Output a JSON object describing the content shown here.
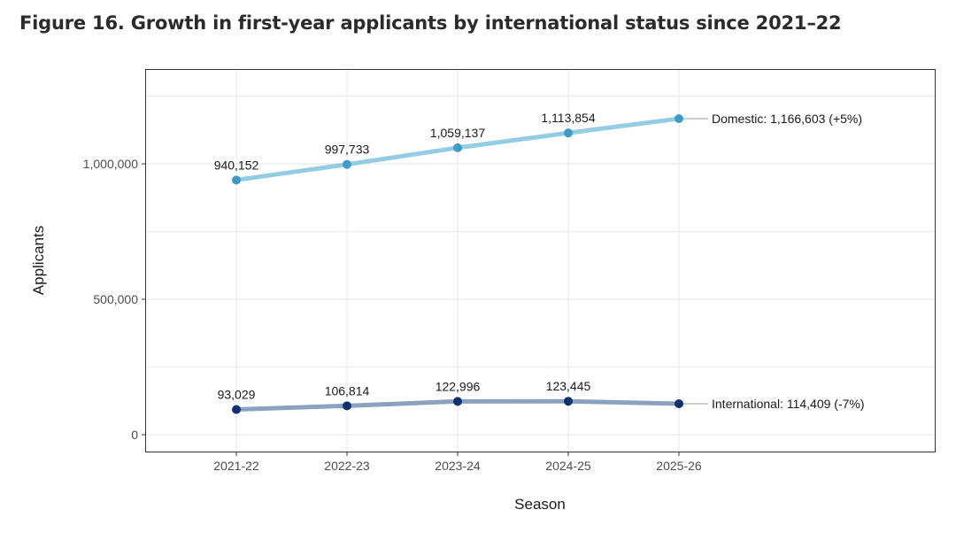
{
  "title": "Figure 16. Growth in first-year applicants by international status since 2021–22",
  "chart_data": {
    "type": "line",
    "title": "Figure 16. Growth in first-year applicants by international status since 2021–22",
    "xlabel": "Season",
    "ylabel": "Applicants",
    "categories": [
      "2021-22",
      "2022-23",
      "2023-24",
      "2024-25",
      "2025-26"
    ],
    "yticks": [
      0,
      500000,
      1000000
    ],
    "ytick_labels": [
      "0",
      "500,000",
      "1,000,000"
    ],
    "ylim": [
      -60000,
      1350000
    ],
    "grid": true,
    "series": [
      {
        "name": "Domestic",
        "values": [
          940152,
          997733,
          1059137,
          1113854,
          1166603
        ],
        "data_labels": [
          "940,152",
          "997,733",
          "1,059,137",
          "1,113,854"
        ],
        "end_label": "Domestic: 1,166,603 (+5%)",
        "line_color": "#92cde3",
        "point_color": "#3e9cc9"
      },
      {
        "name": "International",
        "values": [
          93029,
          106814,
          122996,
          123445,
          114409
        ],
        "data_labels": [
          "93,029",
          "106,814",
          "122,996",
          "123,445"
        ],
        "end_label": "International: 114,409 (-7%)",
        "line_color": "#8aa2bd",
        "point_color": "#0d3170"
      }
    ]
  }
}
